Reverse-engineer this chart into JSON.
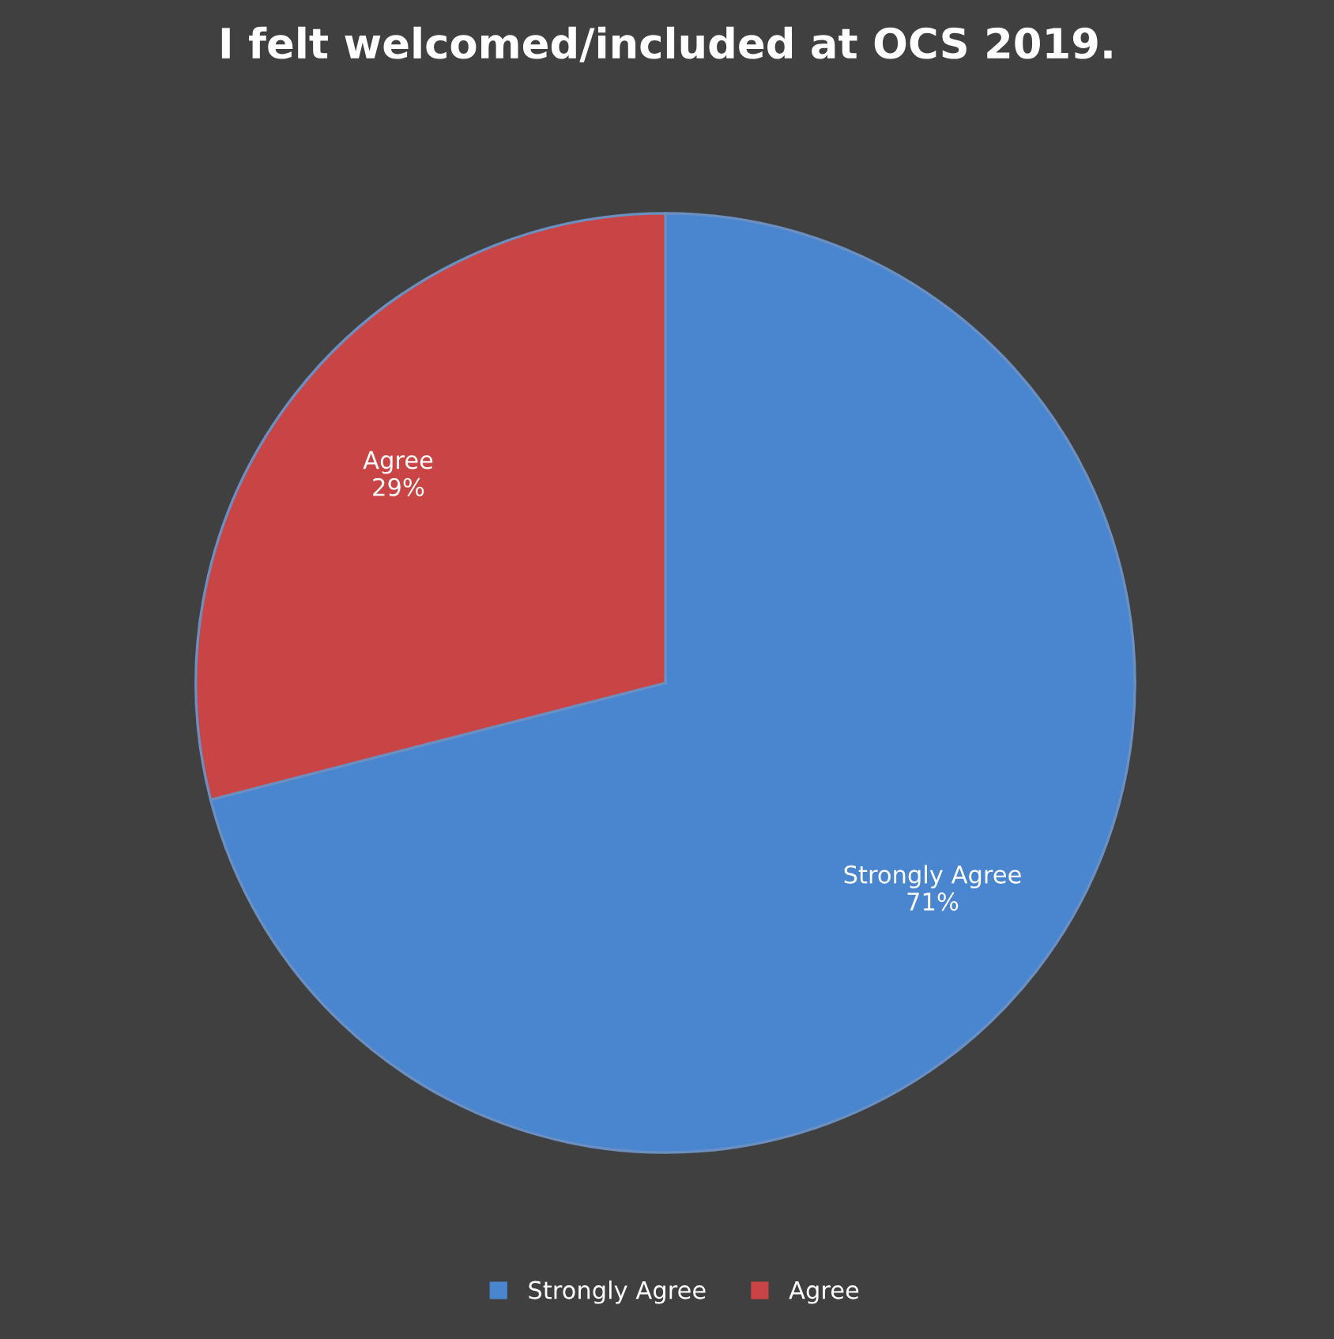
{
  "chart_data": {
    "type": "pie",
    "title": "I felt welcomed/included at OCS 2019.",
    "categories": [
      "Strongly Agree",
      "Agree"
    ],
    "values": [
      71,
      29
    ],
    "colors": [
      "#4a86d0",
      "#c94444"
    ],
    "value_labels": [
      "71%",
      "29%"
    ],
    "legend": "bottom"
  }
}
